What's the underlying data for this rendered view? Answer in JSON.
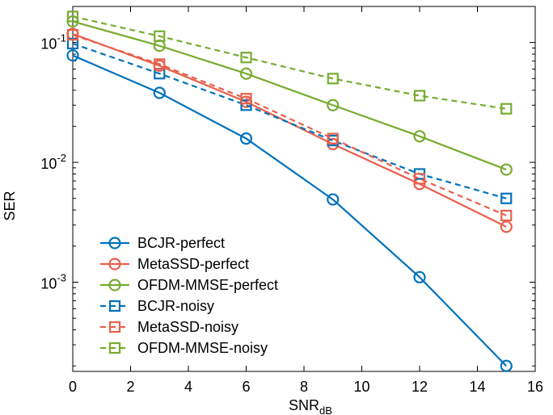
{
  "chart_data": {
    "type": "line",
    "title": "",
    "xlabel": {
      "main": "SNR",
      "sub": "dB"
    },
    "ylabel": "SER",
    "x_ticks": [
      0,
      2,
      4,
      6,
      8,
      10,
      12,
      14,
      16
    ],
    "x_tick_labels": [
      "0",
      "2",
      "4",
      "6",
      "8",
      "10",
      "12",
      "14",
      "16"
    ],
    "y_ticks": [
      {
        "value": 0.1,
        "base": "10",
        "exp": "-1"
      },
      {
        "value": 0.01,
        "base": "10",
        "exp": "-2"
      },
      {
        "value": 0.001,
        "base": "10",
        "exp": "-3"
      }
    ],
    "xlim": [
      0,
      16
    ],
    "ylim": [
      0.00018,
      0.2
    ],
    "yscale": "log",
    "grid": false,
    "legend_position": "bottom-left",
    "x": [
      0,
      3,
      6,
      9,
      12,
      15
    ],
    "series": [
      {
        "name": "BCJR-perfect",
        "color": "#0072bd",
        "marker": "circle",
        "dash": "solid",
        "values": [
          0.078,
          0.038,
          0.0158,
          0.0049,
          0.0011,
          0.0002
        ]
      },
      {
        "name": "MetaSSD-perfect",
        "color": "#e8604c",
        "marker": "circle",
        "dash": "solid",
        "values": [
          0.118,
          0.064,
          0.032,
          0.0142,
          0.0066,
          0.0029
        ]
      },
      {
        "name": "OFDM-MMSE-perfect",
        "color": "#77ac30",
        "marker": "circle",
        "dash": "solid",
        "values": [
          0.15,
          0.094,
          0.055,
          0.03,
          0.0165,
          0.0087
        ]
      },
      {
        "name": "BCJR-noisy",
        "color": "#0072bd",
        "marker": "square",
        "dash": "dashed",
        "values": [
          0.098,
          0.055,
          0.03,
          0.0152,
          0.008,
          0.005
        ]
      },
      {
        "name": "MetaSSD-noisy",
        "color": "#e8604c",
        "marker": "square",
        "dash": "dashed",
        "values": [
          0.116,
          0.066,
          0.034,
          0.0158,
          0.0073,
          0.0036
        ]
      },
      {
        "name": "OFDM-MMSE-noisy",
        "color": "#77ac30",
        "marker": "square",
        "dash": "dashed",
        "values": [
          0.165,
          0.113,
          0.075,
          0.05,
          0.036,
          0.028
        ]
      }
    ]
  }
}
